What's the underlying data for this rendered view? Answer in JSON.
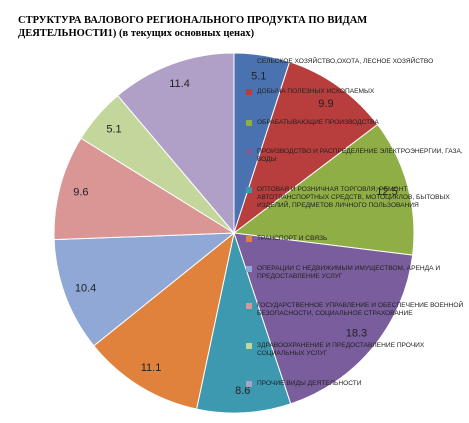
{
  "chart_data": {
    "type": "pie",
    "title": "СТРУКТУРА ВАЛОВОГО РЕГИОНАЛЬНОГО ПРОДУКТА ПО ВИДАМ ДЕЯТЕЛЬНОСТИ1) (в текущих основных ценах)",
    "categories": [
      "СЕЛЬСКОЕ ХОЗЯЙСТВО,ОХОТА, ЛЕСНОЕ ХОЗЯЙСТВО",
      "ДОБЫЧА ПОЛЕЗНЫХ ИСКОПАЕМЫХ",
      "ОБРАБАТЫВАЮЩИЕ ПРОИЗВОДСТВА",
      "ПРОИЗВОДСТВО И РАСПРЕДЕЛЕНИЕ ЭЛЕКТРОЭНЕРГИИ, ГАЗА, ВОДЫ",
      "ОПТОВАЯ И РОЗНИЧНАЯ ТОРГОВЛЯ; РЕМОНТ АВТОТРАНСПОРТНЫХ СРЕДСТВ, МОТОЦИКЛОВ, БЫТОВЫХ ИЗДЕЛИЙ, ПРЕДМЕТОВ ЛИЧНОГО ПОЛЬЗОВАНИЯ",
      "ТРАНСПОРТ И СВЯЗЬ",
      "ОПЕРАЦИИ С НЕДВИЖИМЫМ ИМУЩЕСТВОМ, АРЕНДА И ПРЕДОСТАВЛЕНИЕ УСЛУГ",
      "ГОСУДАРСТВЕННОЕ УПРАВЛЕНИЕ И ОБЕСПЕЧЕНИЕ ВОЕННОЙ БЕЗОПАСНОСТИ, СОЦИАЛЬНОЕ СТРАХОВАНИЕ",
      "ЗДРАВООХРАНЕНИЕ И ПРЕДОСТАВЛЕНИЕ ПРОЧИХ СОЦИАЛЬНЫХ УСЛУГ",
      "ПРОЧИЕ ВИДЫ ДЕЯТЕЛЬНОСТИ"
    ],
    "values": [
      5.1,
      9.9,
      12.5,
      18.3,
      8.6,
      11.1,
      10.4,
      9.6,
      5.1,
      11.4
    ],
    "colors": [
      "#4a72b0",
      "#b83d3d",
      "#8fae45",
      "#7a5d9c",
      "#3d99b0",
      "#e0823c",
      "#8fa8d6",
      "#d99694",
      "#c3d69b",
      "#b0a0c8"
    ]
  }
}
